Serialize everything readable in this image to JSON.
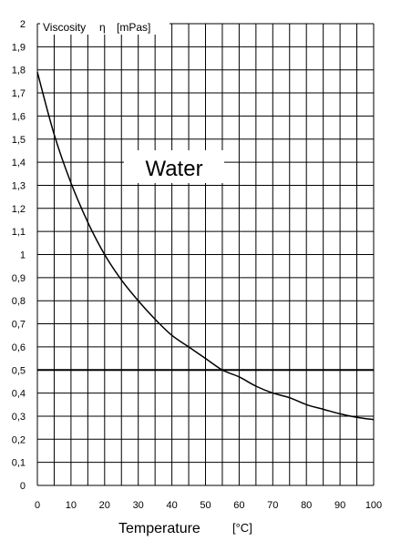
{
  "chart_data": {
    "type": "line",
    "title": "Water",
    "ylabel": "Viscosity",
    "ysymbol": "η",
    "yunit": "[mPas]",
    "xlabel": "Temperature",
    "xunit": "[°C]",
    "xlim": [
      0,
      100
    ],
    "ylim": [
      0,
      2
    ],
    "xticks": [
      "0",
      "10",
      "20",
      "30",
      "40",
      "50",
      "60",
      "70",
      "80",
      "90",
      "100"
    ],
    "yticks": [
      "0",
      "0,1",
      "0,2",
      "0,3",
      "0,4",
      "0,5",
      "0,6",
      "0,7",
      "0,8",
      "0,9",
      "1",
      "1,1",
      "1,2",
      "1,3",
      "1,4",
      "1,5",
      "1,6",
      "1,7",
      "1,8",
      "1,9",
      "2"
    ],
    "grid": true,
    "reference_line": {
      "y": 0.5
    },
    "series": [
      {
        "x": [
          0,
          5,
          10,
          15,
          20,
          25,
          30,
          35,
          40,
          45,
          50,
          55,
          60,
          65,
          70,
          75,
          80,
          85,
          90,
          95,
          100
        ],
        "values": [
          1.79,
          1.52,
          1.31,
          1.14,
          1.0,
          0.89,
          0.8,
          0.72,
          0.65,
          0.6,
          0.55,
          0.5,
          0.47,
          0.43,
          0.4,
          0.38,
          0.35,
          0.33,
          0.31,
          0.295,
          0.285
        ]
      }
    ]
  }
}
